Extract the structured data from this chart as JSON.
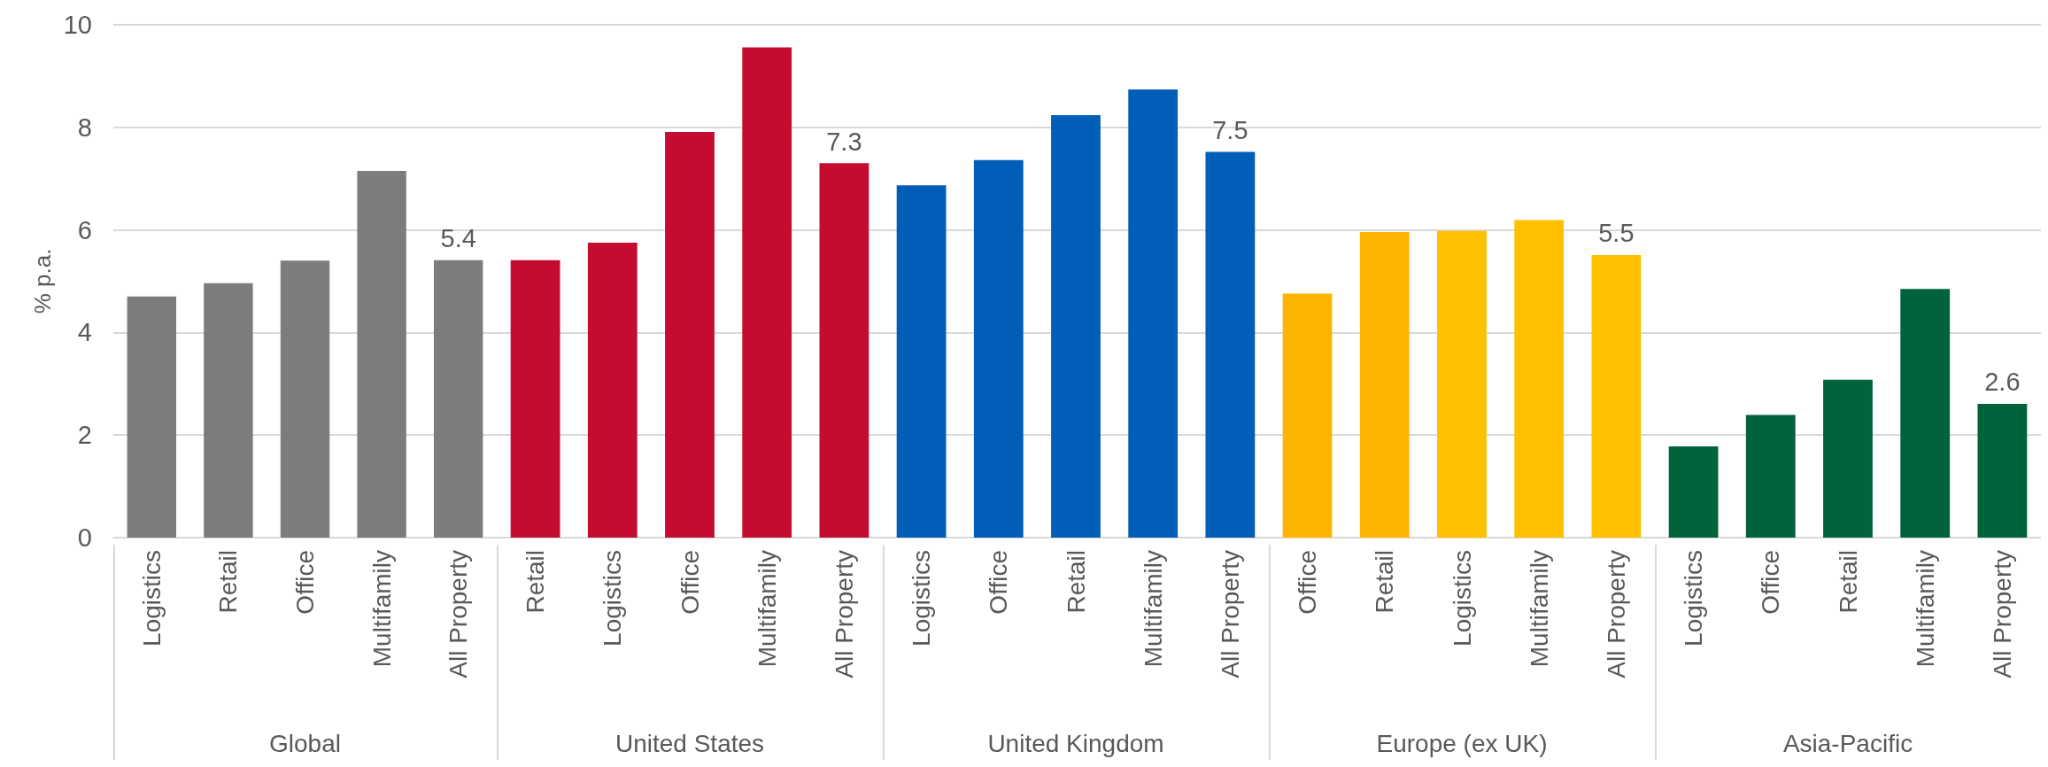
{
  "chart_data": [
    {
      "type": "bar",
      "ylabel": "% p.a.",
      "xlabel": "Global",
      "categories": [
        "Logistics",
        "Retail",
        "Office",
        "Multifamily",
        "All Property"
      ],
      "values": [
        4.7,
        4.96,
        5.4,
        7.15,
        5.41
      ],
      "colors": [
        "#7b7c7b",
        "#7b7c7b",
        "#7b7c7b",
        "#7b7c7b",
        "#7b7c7b"
      ],
      "value_labels": [
        null,
        null,
        null,
        null,
        "5.4"
      ],
      "ylim": [
        0,
        10
      ],
      "yticks": [
        0,
        2,
        4,
        6,
        8,
        10
      ],
      "grid": "y"
    },
    {
      "type": "bar",
      "xlabel": "United States",
      "categories": [
        "Retail",
        "Logistics",
        "Office",
        "Multifamily",
        "All Property"
      ],
      "values": [
        5.41,
        5.75,
        7.91,
        9.56,
        7.3
      ],
      "colors": [
        "#c30c30",
        "#c30c30",
        "#c30c30",
        "#c30c30",
        "#c30c30"
      ],
      "value_labels": [
        null,
        null,
        null,
        null,
        "7.3"
      ],
      "ylim": [
        0,
        10
      ],
      "yticks": [
        0,
        2,
        4,
        6,
        8,
        10
      ],
      "grid": "y",
      "tick_labels": "x"
    },
    {
      "type": "bar",
      "xlabel": "United Kingdom",
      "categories": [
        "Logistics",
        "Office",
        "Retail",
        "Multifamily",
        "All Property"
      ],
      "values": [
        6.87,
        7.36,
        8.24,
        8.74,
        7.52
      ],
      "colors": [
        "#005eb8",
        "#005eb8",
        "#005eb8",
        "#005eb8",
        "#005eb8"
      ],
      "value_labels": [
        null,
        null,
        null,
        null,
        "7.5"
      ],
      "ylim": [
        0,
        10
      ],
      "yticks": [
        0,
        2,
        4,
        6,
        8,
        10
      ],
      "grid": "y",
      "tick_labels": "x"
    },
    {
      "type": "bar",
      "xlabel": "Europe (ex UK)",
      "categories": [
        "Office",
        "Retail",
        "Logistics",
        "Multifamily",
        "All Property"
      ],
      "values": [
        4.76,
        5.96,
        5.98,
        6.19,
        5.51
      ],
      "colors": [
        "#ffb500",
        "#ffb500",
        "#ffc000",
        "#ffc000",
        "#ffc000"
      ],
      "value_labels": [
        null,
        null,
        null,
        null,
        "5.5"
      ],
      "ylim": [
        0,
        10
      ],
      "yticks": [
        0,
        2,
        4,
        6,
        8,
        10
      ],
      "grid": "y",
      "tick_labels": "x"
    },
    {
      "type": "bar",
      "xlabel": "Asia-Pacific",
      "categories": [
        "Logistics",
        "Office",
        "Retail",
        "Multifamily",
        "All Property"
      ],
      "values": [
        1.78,
        2.39,
        3.08,
        4.85,
        2.61
      ],
      "colors": [
        "#01633c",
        "#01633c",
        "#01633c",
        "#01633c",
        "#01633c"
      ],
      "value_labels": [
        null,
        null,
        null,
        null,
        "2.6"
      ],
      "ylim": [
        0,
        10
      ],
      "yticks": [
        0,
        2,
        4,
        6,
        8,
        10
      ],
      "grid": "y",
      "tick_labels": "x"
    }
  ]
}
